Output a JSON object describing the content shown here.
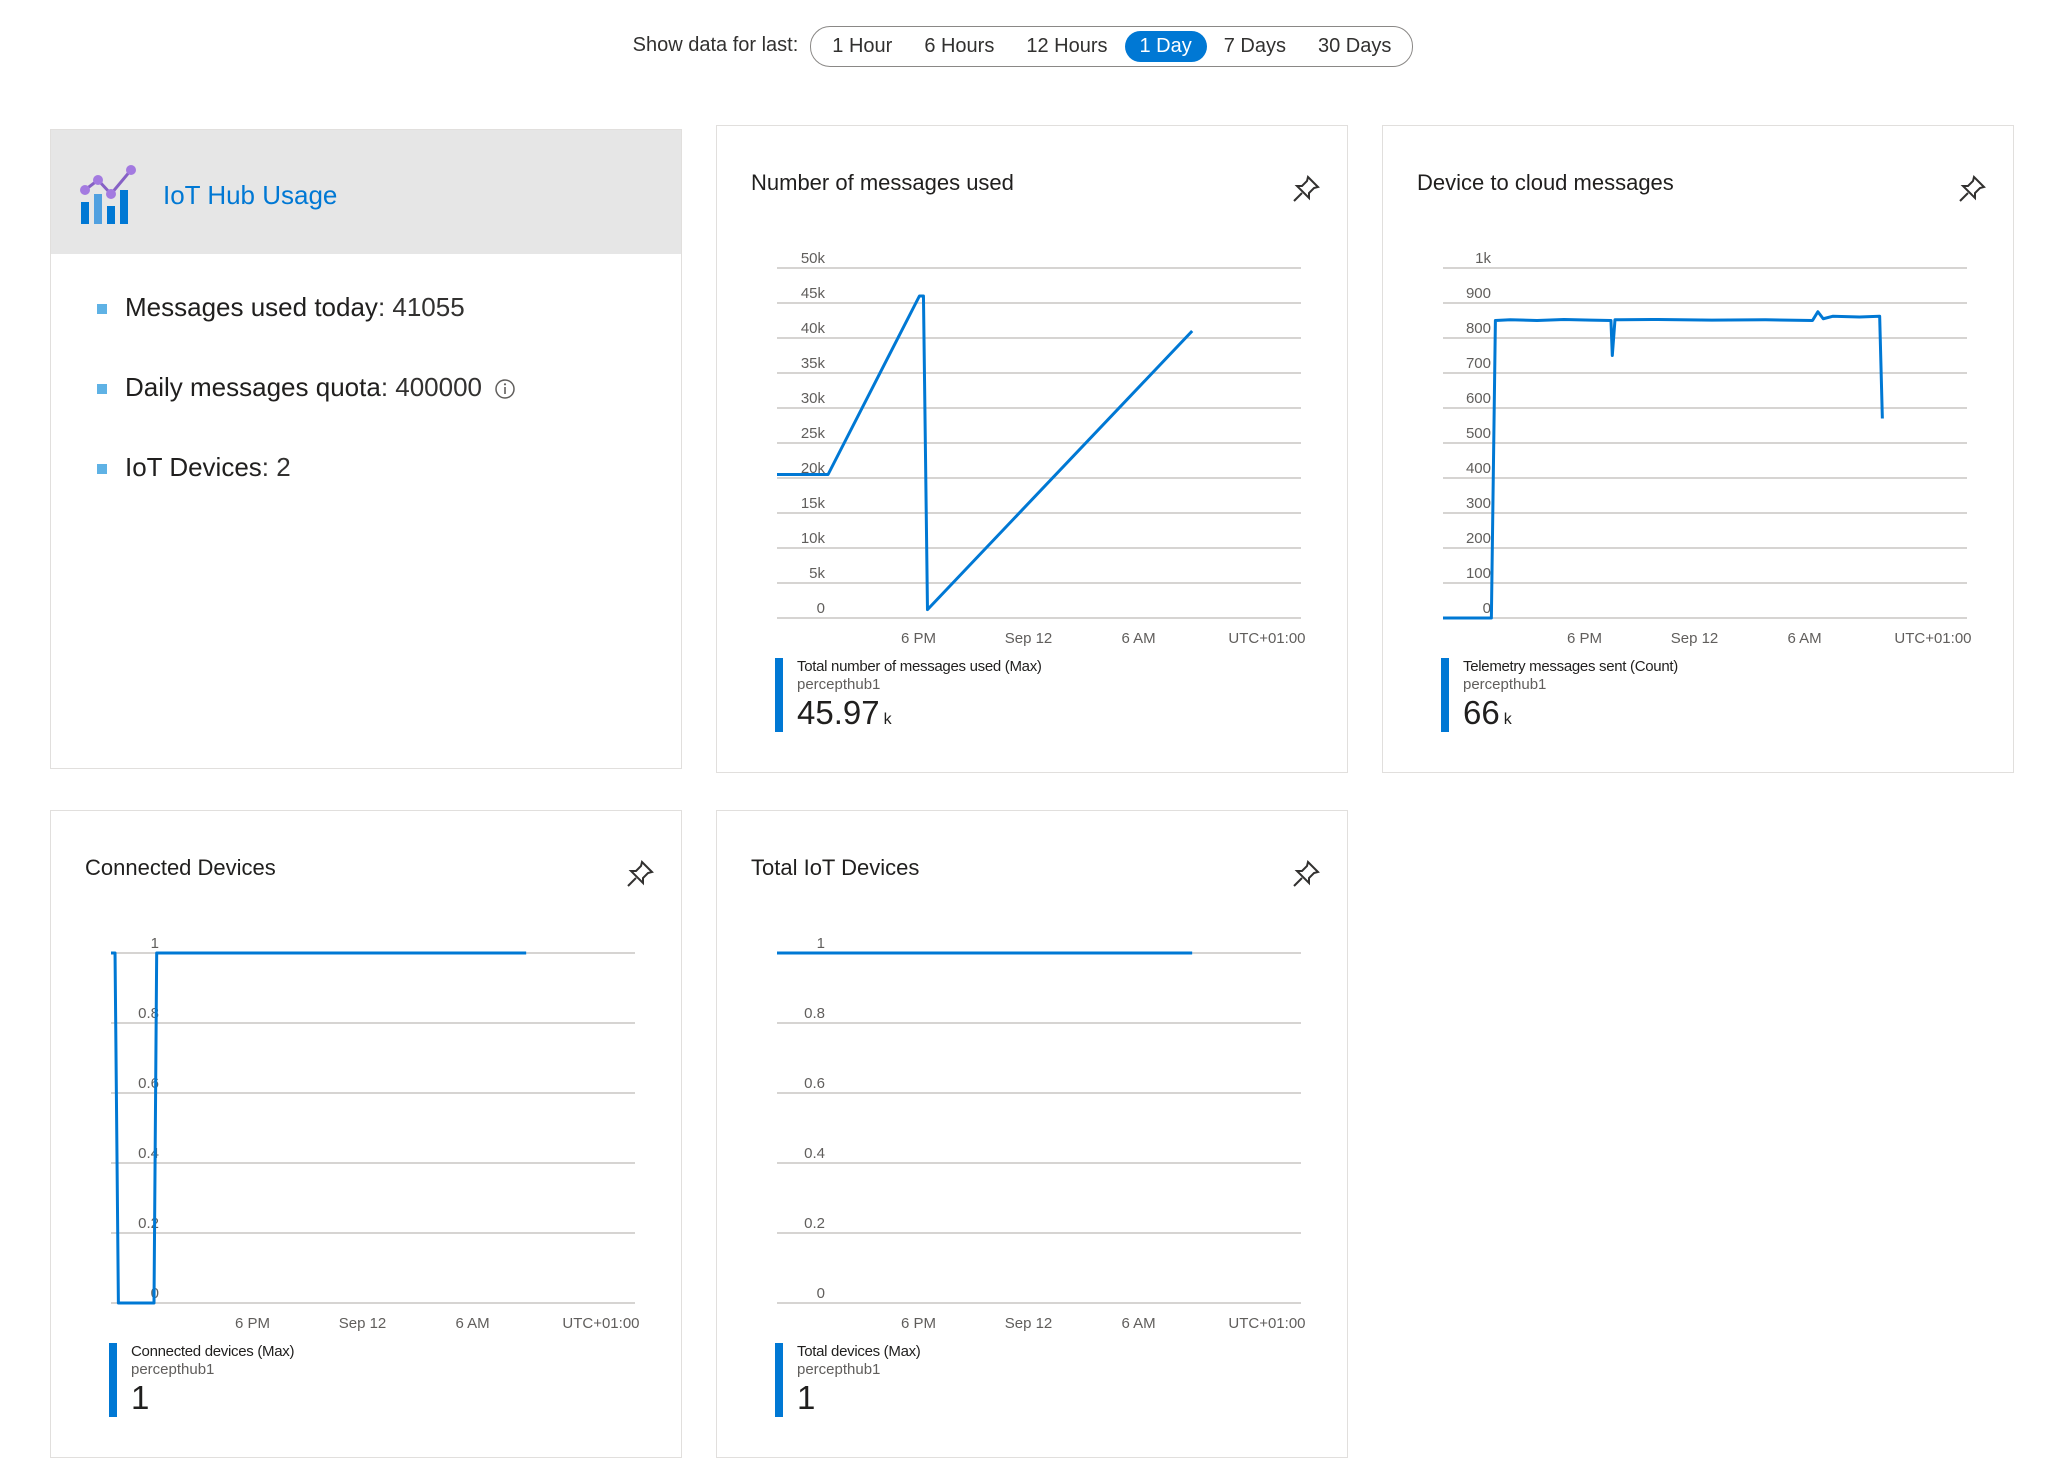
{
  "timeframe": {
    "label": "Show data for last:",
    "options": [
      "1 Hour",
      "6 Hours",
      "12 Hours",
      "1 Day",
      "7 Days",
      "30 Days"
    ],
    "selected": "1 Day"
  },
  "usage": {
    "title": "IoT Hub Usage",
    "items": [
      {
        "key": "Messages used today",
        "value": ": 41055"
      },
      {
        "key": "Daily messages quota",
        "value": ": 400000"
      },
      {
        "key": "IoT Devices",
        "value": ": 2"
      }
    ]
  },
  "x_ticks": [
    "6 PM",
    "Sep 12",
    "6 AM",
    "UTC+01:00"
  ],
  "charts": {
    "messages": {
      "title": "Number of messages used",
      "legend_name": "Total number of messages used (Max)",
      "legend_resource": "percepthub1",
      "legend_value": "45.97",
      "legend_unit": "k"
    },
    "d2c": {
      "title": "Device to cloud messages",
      "legend_name": "Telemetry messages sent (Count)",
      "legend_resource": "percepthub1",
      "legend_value": "66",
      "legend_unit": "k"
    },
    "connected": {
      "title": "Connected Devices",
      "legend_name": "Connected devices (Max)",
      "legend_resource": "percepthub1",
      "legend_value": "1",
      "legend_unit": ""
    },
    "total": {
      "title": "Total IoT Devices",
      "legend_name": "Total devices (Max)",
      "legend_resource": "percepthub1",
      "legend_value": "1",
      "legend_unit": ""
    }
  },
  "colors": {
    "series": "#0078d4",
    "grid": "#c8c6c4",
    "accent": "#0078d4"
  },
  "chart_data": [
    {
      "type": "line",
      "title": "Number of messages used",
      "yticks": [
        "0",
        "5k",
        "10k",
        "15k",
        "20k",
        "25k",
        "30k",
        "35k",
        "40k",
        "45k",
        "50k"
      ],
      "ylim": [
        0,
        50000
      ],
      "xticks": [
        "6 PM",
        "Sep 12",
        "6 AM",
        "UTC+01:00"
      ],
      "x_hours": [
        0,
        3.8,
        10.6,
        10.9,
        11.2,
        30.9
      ],
      "y": [
        20500,
        20500,
        46000,
        46000,
        1200,
        41000
      ],
      "series": [
        {
          "name": "Total number of messages used (Max)"
        }
      ]
    },
    {
      "type": "line",
      "title": "Device to cloud messages",
      "yticks": [
        "0",
        "100",
        "200",
        "300",
        "400",
        "500",
        "600",
        "700",
        "800",
        "900",
        "1k"
      ],
      "ylim": [
        0,
        1000
      ],
      "xticks": [
        "6 PM",
        "Sep 12",
        "6 AM",
        "UTC+01:00"
      ],
      "x_hours": [
        0,
        3.6,
        3.9,
        5,
        7,
        9,
        11,
        12.5,
        12.6,
        12.8,
        13.2,
        16,
        20,
        24,
        27.5,
        27.9,
        28.3,
        29,
        31,
        32.5,
        32.7
      ],
      "y": [
        0,
        0,
        850,
        852,
        850,
        853,
        851,
        850,
        750,
        852,
        852,
        853,
        851,
        852,
        850,
        875,
        855,
        862,
        860,
        862,
        570
      ],
      "series": [
        {
          "name": "Telemetry messages sent (Count)"
        }
      ]
    },
    {
      "type": "line",
      "title": "Connected Devices",
      "yticks": [
        "0",
        "0.2",
        "0.4",
        "0.6",
        "0.8",
        "1"
      ],
      "ylim": [
        0,
        1
      ],
      "xticks": [
        "6 PM",
        "Sep 12",
        "6 AM",
        "UTC+01:00"
      ],
      "x_hours": [
        0,
        0.3,
        0.55,
        3.2,
        3.4,
        30.9
      ],
      "y": [
        1,
        1,
        0,
        0,
        1,
        1
      ],
      "series": [
        {
          "name": "Connected devices (Max)"
        }
      ]
    },
    {
      "type": "line",
      "title": "Total IoT Devices",
      "yticks": [
        "0",
        "0.2",
        "0.4",
        "0.6",
        "0.8",
        "1"
      ],
      "ylim": [
        0,
        1
      ],
      "xticks": [
        "6 PM",
        "Sep 12",
        "6 AM",
        "UTC+01:00"
      ],
      "x_hours": [
        0,
        30.9
      ],
      "y": [
        1,
        1
      ],
      "series": [
        {
          "name": "Total devices (Max)"
        }
      ]
    }
  ]
}
